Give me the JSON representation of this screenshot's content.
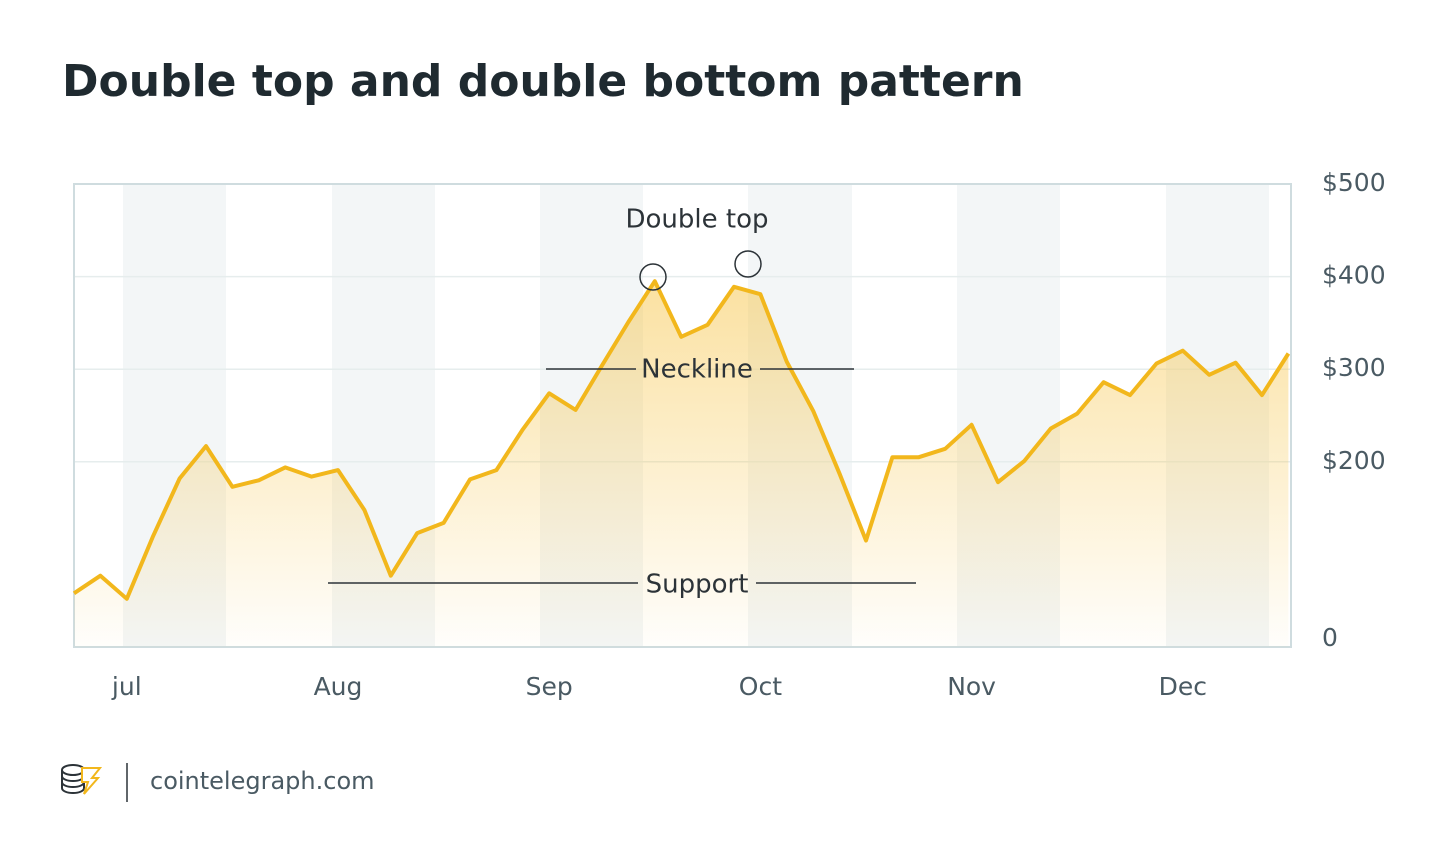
{
  "chart_data": {
    "type": "area",
    "title": "Double top and double bottom pattern",
    "categories": [
      null,
      null,
      "jul",
      null,
      null,
      null,
      null,
      null,
      null,
      null,
      "Aug",
      null,
      null,
      null,
      null,
      null,
      null,
      null,
      "Sep",
      null,
      null,
      null,
      null,
      null,
      null,
      null,
      "Oct",
      null,
      null,
      null,
      null,
      null,
      null,
      null,
      "Nov",
      null,
      null,
      null,
      null,
      null,
      null,
      null,
      "Dec",
      null,
      null,
      null,
      null
    ],
    "series": [
      {
        "color": "#f2b71c",
        "values": [
          58,
          77,
          52,
          120,
          182,
          217,
          173,
          180,
          194,
          184,
          191,
          148,
          77,
          123,
          134,
          181,
          191,
          235,
          274,
          256,
          304,
          351,
          395,
          335,
          348,
          389,
          381,
          308,
          255,
          187,
          115,
          205,
          205,
          214,
          240,
          178,
          201,
          236,
          252,
          286,
          272,
          306,
          320,
          294,
          307,
          272,
          317
        ]
      }
    ],
    "ylim": [
      0,
      500
    ],
    "yticks": [
      0,
      {
        "value": 200,
        "label": "$200"
      },
      {
        "value": 300,
        "label": "$300"
      },
      {
        "value": 400,
        "label": "$400"
      },
      {
        "value": 500,
        "label": "$500"
      }
    ],
    "grid": true,
    "annotations": [
      "Double top",
      "Neckline",
      "Support"
    ],
    "source": "cointelegraph.com"
  }
}
